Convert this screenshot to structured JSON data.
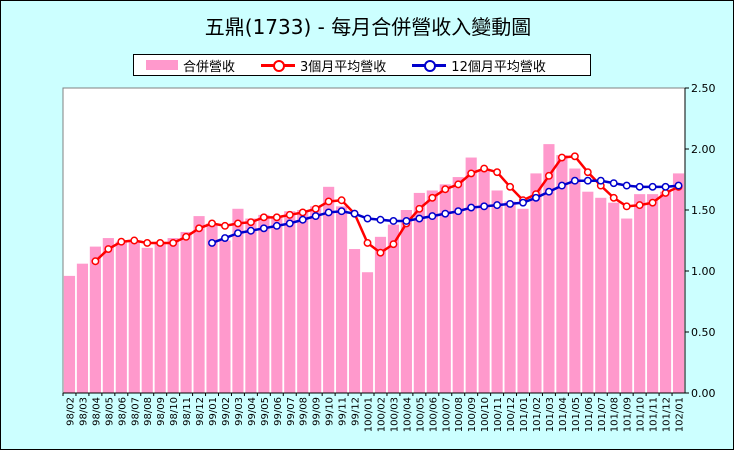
{
  "chart_data": {
    "type": "bar+line",
    "title": "五鼎(1733) - 每月合併營收入變動圖",
    "categories": [
      "98/02",
      "98/03",
      "98/04",
      "98/05",
      "98/06",
      "98/07",
      "98/08",
      "98/09",
      "98/10",
      "98/11",
      "98/12",
      "99/01",
      "99/02",
      "99/03",
      "99/04",
      "99/05",
      "99/06",
      "99/07",
      "99/08",
      "99/09",
      "99/10",
      "99/11",
      "99/12",
      "100/01",
      "100/02",
      "100/03",
      "100/04",
      "100/05",
      "100/06",
      "100/07",
      "100/08",
      "100/09",
      "100/10",
      "100/11",
      "100/12",
      "101/01",
      "101/02",
      "101/03",
      "101/04",
      "101/05",
      "101/06",
      "101/07",
      "101/08",
      "101/09",
      "101/10",
      "101/11",
      "101/12",
      "102/01"
    ],
    "series": [
      {
        "name": "合併營收",
        "kind": "bar",
        "color": "#ff99cc",
        "values": [
          0.96,
          1.06,
          1.2,
          1.27,
          1.24,
          1.24,
          1.19,
          1.24,
          1.27,
          1.32,
          1.45,
          1.39,
          1.25,
          1.51,
          1.43,
          1.46,
          1.44,
          1.49,
          1.5,
          1.53,
          1.69,
          1.53,
          1.18,
          0.99,
          1.28,
          1.38,
          1.5,
          1.64,
          1.66,
          1.71,
          1.77,
          1.93,
          1.83,
          1.66,
          1.57,
          1.51,
          1.8,
          2.04,
          1.95,
          1.84,
          1.65,
          1.6,
          1.56,
          1.43,
          1.63,
          1.63,
          1.65,
          1.8
        ]
      },
      {
        "name": "3個月平均營收",
        "kind": "line",
        "color": "#ff0000",
        "values": [
          null,
          null,
          1.08,
          1.18,
          1.24,
          1.25,
          1.23,
          1.23,
          1.23,
          1.28,
          1.35,
          1.39,
          1.37,
          1.39,
          1.4,
          1.44,
          1.44,
          1.46,
          1.48,
          1.51,
          1.57,
          1.58,
          1.47,
          1.23,
          1.15,
          1.22,
          1.39,
          1.51,
          1.6,
          1.67,
          1.71,
          1.8,
          1.84,
          1.81,
          1.69,
          1.58,
          1.63,
          1.78,
          1.93,
          1.94,
          1.81,
          1.7,
          1.6,
          1.53,
          1.54,
          1.56,
          1.64,
          1.69
        ]
      },
      {
        "name": "12個月平均營收",
        "kind": "line",
        "color": "#0000cc",
        "values": [
          null,
          null,
          null,
          null,
          null,
          null,
          null,
          null,
          null,
          null,
          null,
          1.23,
          1.27,
          1.31,
          1.33,
          1.35,
          1.37,
          1.39,
          1.42,
          1.45,
          1.48,
          1.49,
          1.47,
          1.43,
          1.42,
          1.41,
          1.41,
          1.43,
          1.45,
          1.47,
          1.49,
          1.52,
          1.53,
          1.54,
          1.55,
          1.56,
          1.6,
          1.65,
          1.7,
          1.74,
          1.74,
          1.74,
          1.72,
          1.7,
          1.69,
          1.69,
          1.69,
          1.7
        ]
      }
    ],
    "yaxis": {
      "side": "right",
      "ylim": [
        0,
        2.5
      ],
      "ticks": [
        "0.00",
        "0.50",
        "1.00",
        "1.50",
        "2.00",
        "2.50"
      ]
    },
    "legend": "top",
    "grid": false,
    "plot_background": "#ffffff",
    "figure_background": "#ccffff"
  }
}
